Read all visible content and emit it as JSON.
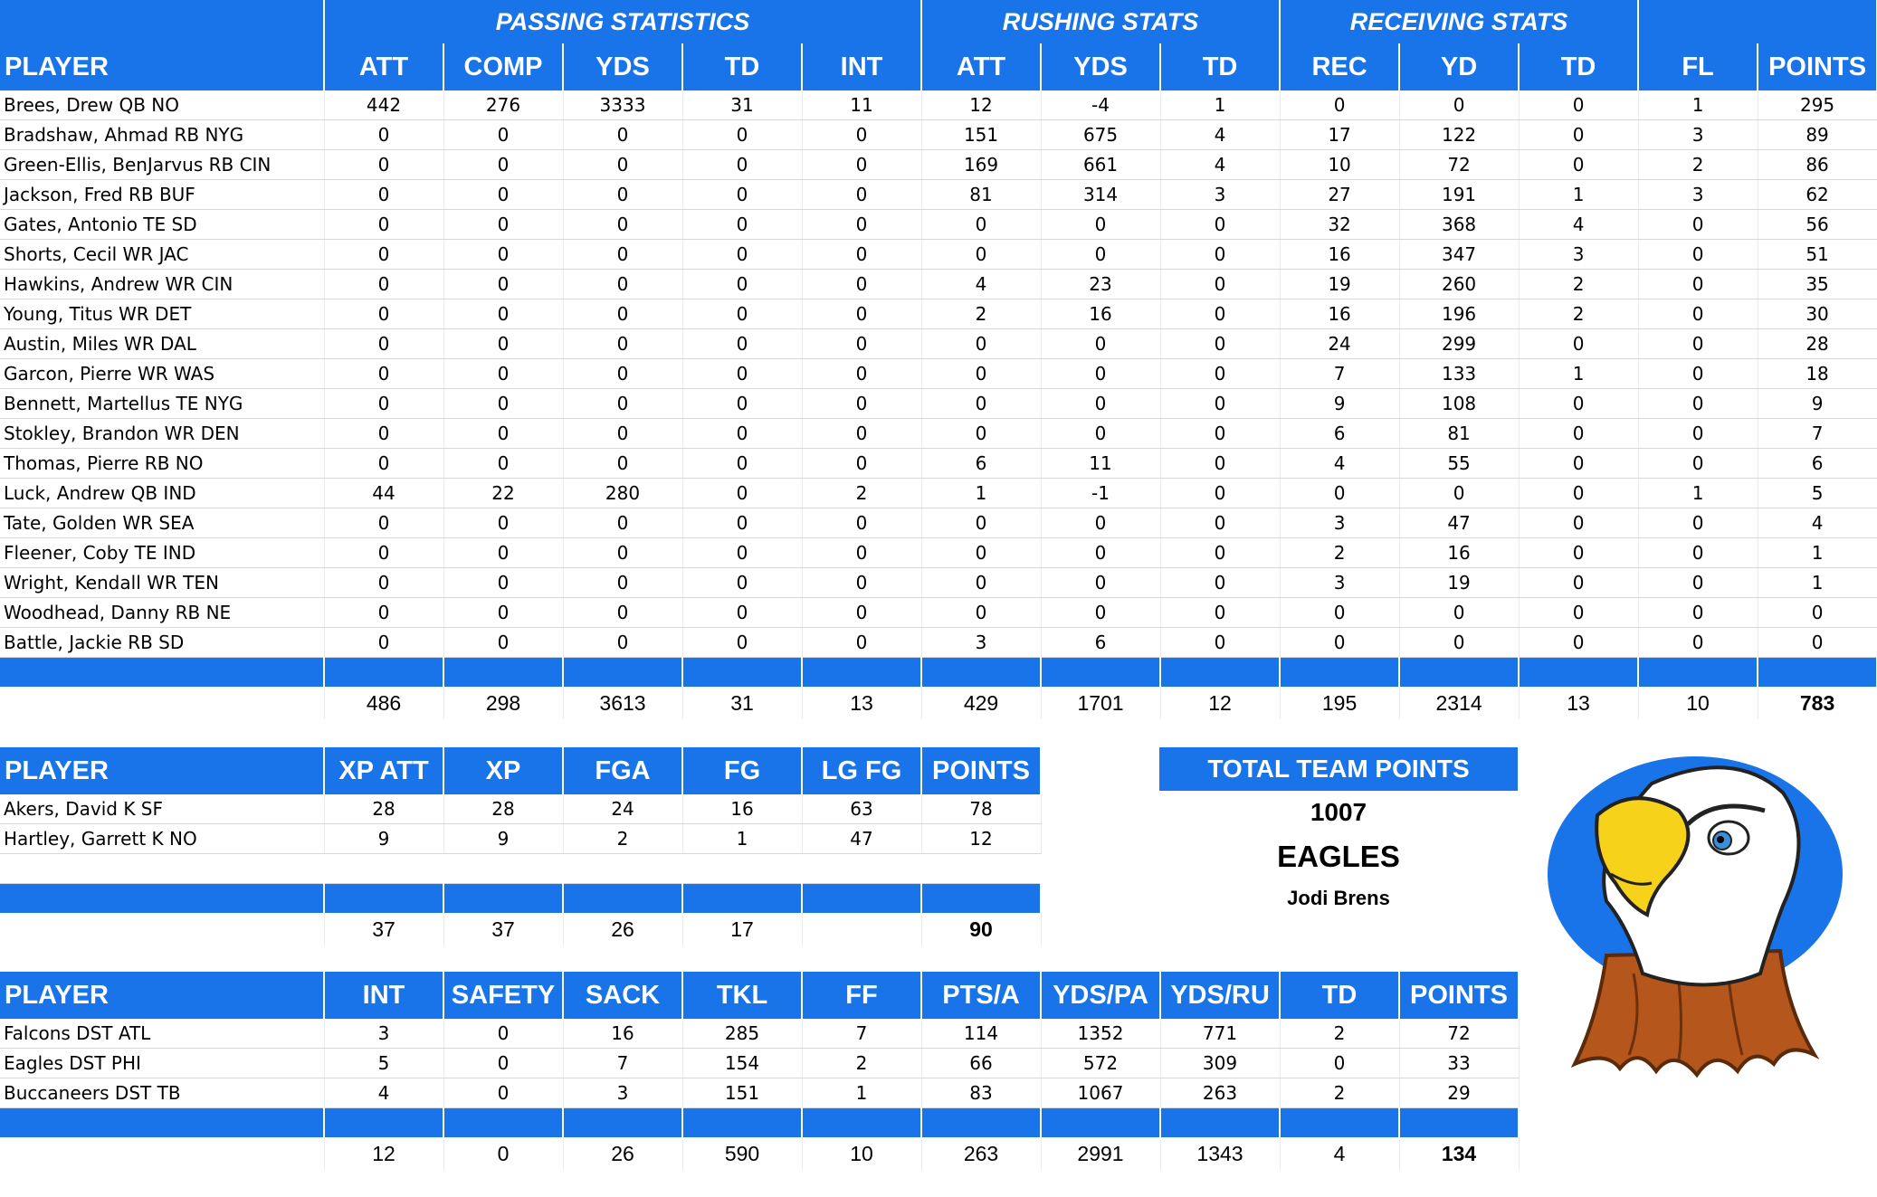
{
  "offense": {
    "groups": [
      "PASSING STATISTICS",
      "RUSHING STATS",
      "RECEIVING STATS"
    ],
    "headers": [
      "PLAYER",
      "ATT",
      "COMP",
      "YDS",
      "TD",
      "INT",
      "ATT",
      "YDS",
      "TD",
      "REC",
      "YD",
      "TD",
      "FL",
      "POINTS"
    ],
    "rows": [
      [
        "Brees, Drew QB NO",
        "442",
        "276",
        "3333",
        "31",
        "11",
        "12",
        "-4",
        "1",
        "0",
        "0",
        "0",
        "1",
        "295"
      ],
      [
        "Bradshaw, Ahmad RB NYG",
        "0",
        "0",
        "0",
        "0",
        "0",
        "151",
        "675",
        "4",
        "17",
        "122",
        "0",
        "3",
        "89"
      ],
      [
        "Green-Ellis, BenJarvus RB CIN",
        "0",
        "0",
        "0",
        "0",
        "0",
        "169",
        "661",
        "4",
        "10",
        "72",
        "0",
        "2",
        "86"
      ],
      [
        "Jackson, Fred RB BUF",
        "0",
        "0",
        "0",
        "0",
        "0",
        "81",
        "314",
        "3",
        "27",
        "191",
        "1",
        "3",
        "62"
      ],
      [
        "Gates, Antonio TE SD",
        "0",
        "0",
        "0",
        "0",
        "0",
        "0",
        "0",
        "0",
        "32",
        "368",
        "4",
        "0",
        "56"
      ],
      [
        "Shorts, Cecil WR JAC",
        "0",
        "0",
        "0",
        "0",
        "0",
        "0",
        "0",
        "0",
        "16",
        "347",
        "3",
        "0",
        "51"
      ],
      [
        "Hawkins, Andrew WR CIN",
        "0",
        "0",
        "0",
        "0",
        "0",
        "4",
        "23",
        "0",
        "19",
        "260",
        "2",
        "0",
        "35"
      ],
      [
        "Young, Titus WR DET",
        "0",
        "0",
        "0",
        "0",
        "0",
        "2",
        "16",
        "0",
        "16",
        "196",
        "2",
        "0",
        "30"
      ],
      [
        "Austin, Miles WR DAL",
        "0",
        "0",
        "0",
        "0",
        "0",
        "0",
        "0",
        "0",
        "24",
        "299",
        "0",
        "0",
        "28"
      ],
      [
        "Garcon, Pierre WR WAS",
        "0",
        "0",
        "0",
        "0",
        "0",
        "0",
        "0",
        "0",
        "7",
        "133",
        "1",
        "0",
        "18"
      ],
      [
        "Bennett, Martellus TE NYG",
        "0",
        "0",
        "0",
        "0",
        "0",
        "0",
        "0",
        "0",
        "9",
        "108",
        "0",
        "0",
        "9"
      ],
      [
        "Stokley, Brandon WR DEN",
        "0",
        "0",
        "0",
        "0",
        "0",
        "0",
        "0",
        "0",
        "6",
        "81",
        "0",
        "0",
        "7"
      ],
      [
        "Thomas, Pierre RB NO",
        "0",
        "0",
        "0",
        "0",
        "0",
        "6",
        "11",
        "0",
        "4",
        "55",
        "0",
        "0",
        "6"
      ],
      [
        "Luck, Andrew QB IND",
        "44",
        "22",
        "280",
        "0",
        "2",
        "1",
        "-1",
        "0",
        "0",
        "0",
        "0",
        "1",
        "5"
      ],
      [
        "Tate, Golden WR SEA",
        "0",
        "0",
        "0",
        "0",
        "0",
        "0",
        "0",
        "0",
        "3",
        "47",
        "0",
        "0",
        "4"
      ],
      [
        "Fleener, Coby TE IND",
        "0",
        "0",
        "0",
        "0",
        "0",
        "0",
        "0",
        "0",
        "2",
        "16",
        "0",
        "0",
        "1"
      ],
      [
        "Wright, Kendall WR TEN",
        "0",
        "0",
        "0",
        "0",
        "0",
        "0",
        "0",
        "0",
        "3",
        "19",
        "0",
        "0",
        "1"
      ],
      [
        "Woodhead, Danny RB NE",
        "0",
        "0",
        "0",
        "0",
        "0",
        "0",
        "0",
        "0",
        "0",
        "0",
        "0",
        "0",
        "0"
      ],
      [
        "Battle, Jackie RB SD",
        "0",
        "0",
        "0",
        "0",
        "0",
        "3",
        "6",
        "0",
        "0",
        "0",
        "0",
        "0",
        "0"
      ]
    ],
    "totals": [
      "",
      "486",
      "298",
      "3613",
      "31",
      "13",
      "429",
      "1701",
      "12",
      "195",
      "2314",
      "13",
      "10",
      "783"
    ]
  },
  "kicking": {
    "headers": [
      "PLAYER",
      "XP ATT",
      "XP",
      "FGA",
      "FG",
      "LG FG",
      "POINTS"
    ],
    "rows": [
      [
        "Akers, David K SF",
        "28",
        "28",
        "24",
        "16",
        "63",
        "78"
      ],
      [
        "Hartley, Garrett K NO",
        "9",
        "9",
        "2",
        "1",
        "47",
        "12"
      ]
    ],
    "totals": [
      "",
      "37",
      "37",
      "26",
      "17",
      "",
      "90"
    ]
  },
  "defense": {
    "headers": [
      "PLAYER",
      "INT",
      "SAFETY",
      "SACK",
      "TKL",
      "FF",
      "PTS/A",
      "YDS/PA",
      "YDS/RU",
      "TD",
      "POINTS"
    ],
    "rows": [
      [
        "Falcons DST ATL",
        "3",
        "0",
        "16",
        "285",
        "7",
        "114",
        "1352",
        "771",
        "2",
        "72"
      ],
      [
        "Eagles DST PHI",
        "5",
        "0",
        "7",
        "154",
        "2",
        "66",
        "572",
        "309",
        "0",
        "33"
      ],
      [
        "Buccaneers DST TB",
        "4",
        "0",
        "3",
        "151",
        "1",
        "83",
        "1067",
        "263",
        "2",
        "29"
      ]
    ],
    "totals": [
      "",
      "12",
      "0",
      "26",
      "590",
      "10",
      "263",
      "2991",
      "1343",
      "4",
      "134"
    ]
  },
  "team": {
    "title": "TOTAL TEAM POINTS",
    "points": "1007",
    "name": "EAGLES",
    "owner": "Jodi Brens",
    "logo_icon": "eagle-mascot-icon"
  },
  "colors": {
    "header_blue": "#1874e8",
    "header_text": "#ffffff"
  }
}
